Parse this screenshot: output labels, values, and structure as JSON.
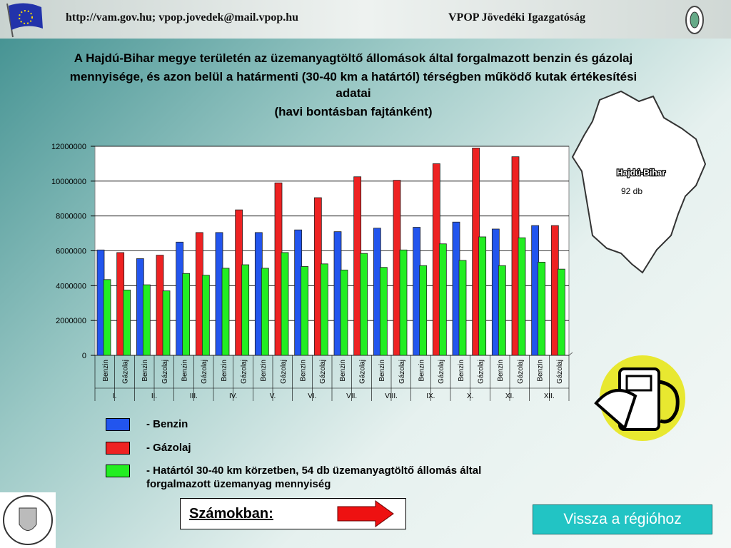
{
  "header": {
    "left": "http://vam.gov.hu; vpop.jovedek@mail.vpop.hu",
    "right": "VPOP Jövedéki Igazgatóság"
  },
  "title_lines": [
    "A Hajdú-Bihar megye területén az üzemanyagtöltő állomások által forgalmazott benzin és gázolaj",
    "mennyisége, és azon belül a határmenti (30-40 km a határtól) térségben működő kutak értékesítési",
    "adatai",
    "(havi bontásban fajtánként)"
  ],
  "map": {
    "label": "Hajdú-Bihar",
    "count": "92 db"
  },
  "chart_data": {
    "type": "bar",
    "categories": [
      "Benzin",
      "Gázolaj",
      "Benzin",
      "Gázolaj",
      "Benzin",
      "Gázolaj",
      "Benzin",
      "Gázolaj",
      "Benzin",
      "Gázolaj",
      "Benzin",
      "Gázolaj",
      "Benzin",
      "Gázolaj",
      "Benzin",
      "Gázolaj",
      "Benzin",
      "Gázolaj",
      "Benzin",
      "Gázolaj",
      "Benzin",
      "Gázolaj",
      "Benzin",
      "Gázolaj"
    ],
    "groups": [
      "I.",
      "II.",
      "III.",
      "IV.",
      "V.",
      "VI.",
      "VII.",
      "VIII.",
      "IX.",
      "X.",
      "XI.",
      "XII."
    ],
    "series": [
      {
        "name": "- Benzin",
        "color": "#2255ee",
        "values": [
          6050000,
          null,
          5550000,
          null,
          6500000,
          null,
          7050000,
          null,
          7050000,
          null,
          7200000,
          null,
          7100000,
          null,
          7300000,
          null,
          7350000,
          null,
          7650000,
          null,
          7250000,
          null,
          7450000,
          null
        ]
      },
      {
        "name": "- Gázolaj",
        "color": "#ee2222",
        "values": [
          null,
          5900000,
          null,
          5750000,
          null,
          7050000,
          null,
          8350000,
          null,
          9900000,
          null,
          9050000,
          null,
          10250000,
          null,
          10050000,
          null,
          11000000,
          null,
          11900000,
          null,
          11400000,
          null,
          7450000
        ]
      },
      {
        "name": "- Határtól 30-40 km körzetben, 54 db üzemanyagtöltő állomás által forgalmazott üzemanyag mennyiség",
        "color": "#22ee22",
        "values": [
          4350000,
          3750000,
          4050000,
          3700000,
          4700000,
          4600000,
          5000000,
          5200000,
          5000000,
          5900000,
          5100000,
          5250000,
          4900000,
          5850000,
          5050000,
          6050000,
          5150000,
          6400000,
          5450000,
          6800000,
          5150000,
          6750000,
          5350000,
          4950000
        ]
      }
    ],
    "ylim": [
      0,
      12000000
    ],
    "yticks": [
      0,
      2000000,
      4000000,
      6000000,
      8000000,
      10000000,
      12000000
    ],
    "grid": true
  },
  "box": {
    "label": "Számokban:"
  },
  "button": {
    "label": "Vissza a régióhoz"
  }
}
